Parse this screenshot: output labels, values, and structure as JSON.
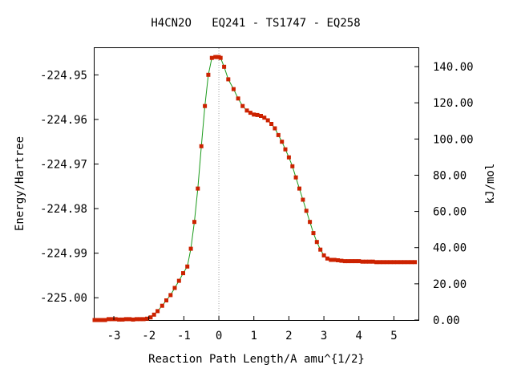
{
  "chart_data": {
    "type": "line",
    "title": "H4CN2O   EQ241 - TS1747 - EQ258",
    "xlabel": "Reaction Path Length/A amu^{1/2}",
    "ylabel": "Energy/Hartree",
    "y2label": "kJ/mol",
    "xlim": [
      -3.55,
      5.7
    ],
    "ylim": [
      -225.005,
      -224.944
    ],
    "y2lim": [
      0,
      150.2
    ],
    "x_ticks": [
      -3,
      -2,
      -1,
      0,
      1,
      2,
      3,
      4,
      5
    ],
    "x_tick_labels": [
      "-3",
      "-2",
      "-1",
      "0",
      "1",
      "2",
      "3",
      "4",
      "5"
    ],
    "y_ticks": [
      -224.95,
      -224.96,
      -224.97,
      -224.98,
      -224.99,
      -225.0
    ],
    "y_tick_labels": [
      "-224.95",
      "-224.96",
      "-224.97",
      "-224.98",
      "-224.99",
      "-225.00"
    ],
    "y2_ticks": [
      0,
      20,
      40,
      60,
      80,
      100,
      120,
      140
    ],
    "y2_tick_labels": [
      "0.00",
      "20.00",
      "40.00",
      "60.00",
      "80.00",
      "100.00",
      "120.00",
      "140.00"
    ],
    "ts_x": 0,
    "grid": false,
    "line_color": "#1a9a1a",
    "marker_color": "#cc2200",
    "ts_line_color": "#a0a0a0",
    "series": [
      {
        "x": [
          -3.55,
          -3.45,
          -3.35,
          -3.25,
          -3.15,
          -3.05,
          -2.95,
          -2.85,
          -2.75,
          -2.65,
          -2.55,
          -2.45,
          -2.35,
          -2.25,
          -2.15,
          -2.05,
          -1.95,
          -1.85,
          -1.75,
          -1.62,
          -1.5,
          -1.38,
          -1.26,
          -1.14,
          -1.02,
          -0.9,
          -0.8,
          -0.7,
          -0.6,
          -0.5,
          -0.4,
          -0.3,
          -0.2,
          -0.1,
          -0.05,
          0,
          0.05,
          0.15,
          0.27,
          0.42,
          0.55,
          0.68,
          0.8,
          0.9,
          1.0,
          1.1,
          1.2,
          1.3,
          1.4,
          1.5,
          1.6,
          1.7,
          1.8,
          1.9,
          2.0,
          2.1,
          2.2,
          2.3,
          2.4,
          2.5,
          2.6,
          2.7,
          2.8,
          2.9,
          3.0,
          3.1,
          3.2,
          3.3,
          3.4,
          3.5,
          3.6,
          3.7,
          3.8,
          3.9,
          4.0,
          4.1,
          4.2,
          4.3,
          4.4,
          4.5,
          4.6,
          4.7,
          4.8,
          4.9,
          5.0,
          5.1,
          5.2,
          5.3,
          5.4,
          5.5,
          5.6
        ],
        "y": [
          -225.005,
          -225.005,
          -225.005,
          -225.005,
          -225.0048,
          -225.0048,
          -225.0048,
          -225.0049,
          -225.0049,
          -225.0048,
          -225.0048,
          -225.0049,
          -225.0048,
          -225.0048,
          -225.0048,
          -225.0047,
          -225.0044,
          -225.0038,
          -225.003,
          -225.0018,
          -225.0006,
          -224.9994,
          -224.9978,
          -224.9962,
          -224.9945,
          -224.993,
          -224.989,
          -224.983,
          -224.9755,
          -224.966,
          -224.957,
          -224.95,
          -224.9462,
          -224.946,
          -224.946,
          -224.946,
          -224.9462,
          -224.9482,
          -224.951,
          -224.9532,
          -224.9553,
          -224.957,
          -224.958,
          -224.9585,
          -224.9589,
          -224.959,
          -224.9592,
          -224.9596,
          -224.9602,
          -224.961,
          -224.962,
          -224.9635,
          -224.965,
          -224.9667,
          -224.9685,
          -224.9705,
          -224.973,
          -224.9755,
          -224.978,
          -224.9805,
          -224.983,
          -224.9855,
          -224.9875,
          -224.9892,
          -224.9905,
          -224.9912,
          -224.9915,
          -224.9915,
          -224.9916,
          -224.9917,
          -224.9918,
          -224.9918,
          -224.9918,
          -224.9918,
          -224.9918,
          -224.9919,
          -224.9919,
          -224.9919,
          -224.9919,
          -224.992,
          -224.992,
          -224.992,
          -224.992,
          -224.992,
          -224.992,
          -224.992,
          -224.992,
          -224.992,
          -224.992,
          -224.992,
          -224.992
        ]
      }
    ]
  }
}
